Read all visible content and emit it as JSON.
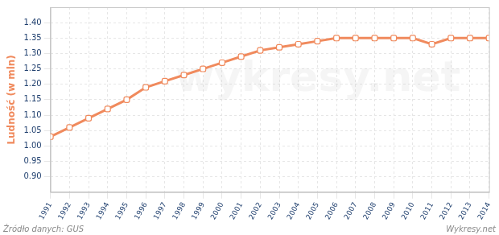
{
  "chart_data": {
    "type": "line",
    "y_label": "Ludność (w mln)",
    "annotations": [
      "Źródło danych: GUS",
      "Wykresy.net",
      "wykresy.net"
    ],
    "categories": [
      "1991",
      "1992",
      "1993",
      "1994",
      "1995",
      "1996",
      "1997",
      "1998",
      "1999",
      "2000",
      "2001",
      "2002",
      "2003",
      "2004",
      "2005",
      "2006",
      "2007",
      "2008",
      "2009",
      "2010",
      "2011",
      "2012",
      "2013",
      "2014"
    ],
    "values": [
      1.03,
      1.06,
      1.09,
      1.12,
      1.15,
      1.19,
      1.21,
      1.23,
      1.25,
      1.27,
      1.29,
      1.31,
      1.32,
      1.33,
      1.34,
      1.35,
      1.35,
      1.35,
      1.35,
      1.35,
      1.33,
      1.35,
      1.35,
      1.35
    ],
    "color": "#f08a5d",
    "marker": "square",
    "ylim": [
      0.85,
      1.45
    ],
    "yticks": [
      {
        "value": 0.9,
        "label": "0.90"
      },
      {
        "value": 0.95,
        "label": "0.95"
      },
      {
        "value": 1.0,
        "label": "1.00"
      },
      {
        "value": 1.05,
        "label": "1.05"
      },
      {
        "value": 1.1,
        "label": "1.10"
      },
      {
        "value": 1.15,
        "label": "1.15"
      },
      {
        "value": 1.2,
        "label": "1.20"
      },
      {
        "value": 1.25,
        "label": "1.25"
      },
      {
        "value": 1.3,
        "label": "1.30"
      },
      {
        "value": 1.35,
        "label": "1.35"
      },
      {
        "value": 1.4,
        "label": "1.40"
      }
    ],
    "grid": true
  }
}
